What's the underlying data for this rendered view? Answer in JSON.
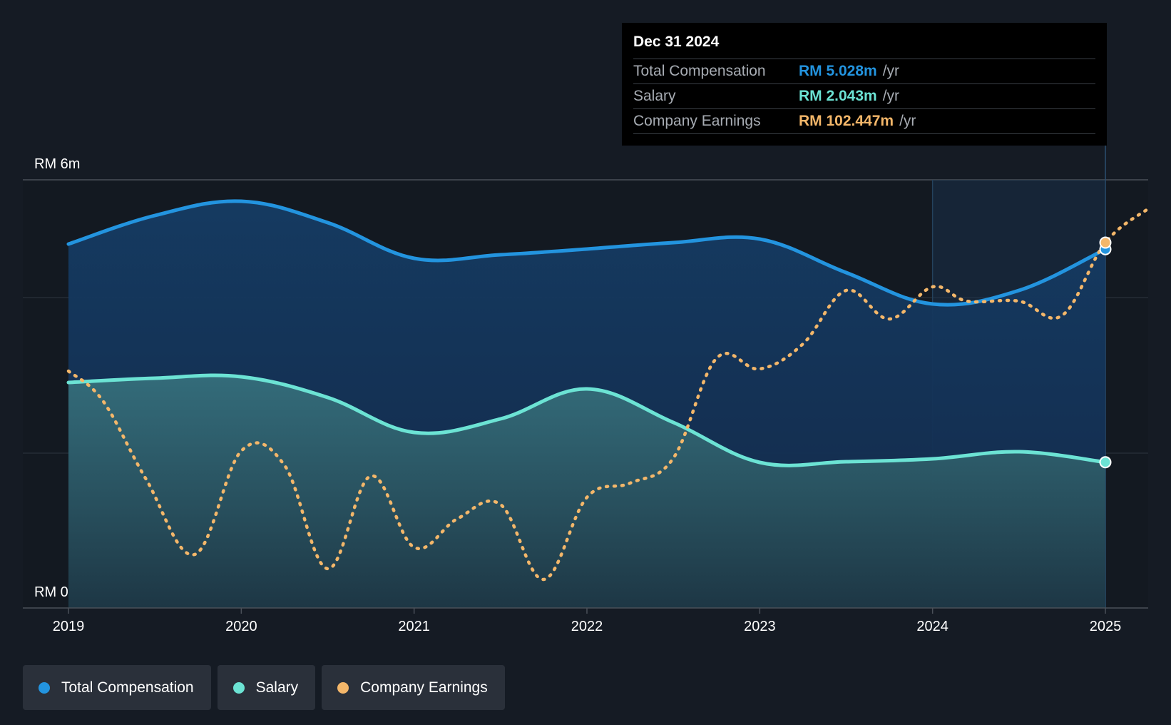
{
  "tooltip": {
    "date": "Dec 31 2024",
    "rows": [
      {
        "label": "Total Compensation",
        "value": "RM 5.028m",
        "unit": "/yr",
        "color": "#2394df"
      },
      {
        "label": "Salary",
        "value": "RM 2.043m",
        "unit": "/yr",
        "color": "#6ce3d4"
      },
      {
        "label": "Company Earnings",
        "value": "RM 102.447m",
        "unit": "/yr",
        "color": "#f4b76a"
      }
    ]
  },
  "legend": [
    {
      "label": "Total Compensation",
      "color": "#2394df"
    },
    {
      "label": "Salary",
      "color": "#6ce3d4"
    },
    {
      "label": "Company Earnings",
      "color": "#f4b76a"
    }
  ],
  "chart_data": {
    "type": "area",
    "y_tick_labels": [
      "RM 6m",
      "RM 0"
    ],
    "ylim": [
      0,
      6
    ],
    "xlim": [
      2018.75,
      2025.25
    ],
    "x_tick_labels": [
      "2019",
      "2020",
      "2021",
      "2022",
      "2023",
      "2024",
      "2025"
    ],
    "x_ticks": [
      2019,
      2020,
      2021,
      2022,
      2023,
      2024,
      2025
    ],
    "grid_values": [
      4.35,
      2.17
    ],
    "highlight_from": 2024.0,
    "marker_x": 2025.0,
    "series": [
      {
        "name": "Total Compensation",
        "color": "#2394df",
        "style": "solid-area",
        "x": [
          2019.0,
          2019.5,
          2020.0,
          2020.5,
          2021.0,
          2021.5,
          2022.0,
          2022.5,
          2023.0,
          2023.5,
          2024.0,
          2024.5,
          2025.0
        ],
        "y": [
          5.1,
          5.5,
          5.7,
          5.4,
          4.9,
          4.95,
          5.03,
          5.12,
          5.17,
          4.7,
          4.26,
          4.45,
          5.028
        ]
      },
      {
        "name": "Salary",
        "color": "#6ce3d4",
        "style": "solid-area",
        "x": [
          2019.0,
          2019.5,
          2020.0,
          2020.5,
          2021.0,
          2021.5,
          2022.0,
          2022.5,
          2023.0,
          2023.5,
          2024.0,
          2024.5,
          2025.0
        ],
        "y": [
          3.16,
          3.22,
          3.24,
          2.95,
          2.46,
          2.65,
          3.07,
          2.6,
          2.04,
          2.05,
          2.09,
          2.19,
          2.043
        ]
      },
      {
        "name": "Company Earnings",
        "color": "#f4b76a",
        "style": "dotted",
        "x": [
          2019.0,
          2019.2,
          2019.45,
          2019.73,
          2020.0,
          2020.25,
          2020.5,
          2020.75,
          2021.0,
          2021.25,
          2021.5,
          2021.75,
          2022.0,
          2022.25,
          2022.5,
          2022.75,
          2023.0,
          2023.25,
          2023.5,
          2023.75,
          2024.0,
          2024.2,
          2024.5,
          2024.75,
          2025.0,
          2025.25
        ],
        "y": [
          3.32,
          2.9,
          1.8,
          0.75,
          2.2,
          2.0,
          0.55,
          1.85,
          0.85,
          1.25,
          1.45,
          0.4,
          1.55,
          1.75,
          2.1,
          3.5,
          3.35,
          3.7,
          4.45,
          4.05,
          4.5,
          4.3,
          4.3,
          4.1,
          5.12,
          5.6
        ]
      }
    ]
  }
}
